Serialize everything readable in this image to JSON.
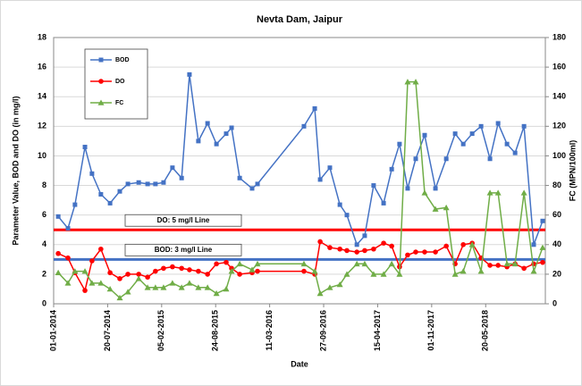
{
  "chart_data": {
    "type": "line",
    "title": "Nevta Dam, Jaipur",
    "xlabel": "Date",
    "ylabel": "Parameter Value, BOD and DO (in mg/l)",
    "y2label": "FC (MPN/100ml)",
    "x": [
      "2014-01-18",
      "2014-02-23",
      "2014-03-21",
      "2014-04-27",
      "2014-05-23",
      "2014-06-25",
      "2014-07-29",
      "2014-09-03",
      "2014-10-03",
      "2014-11-12",
      "2014-12-15",
      "2015-01-13",
      "2015-02-12",
      "2015-03-17",
      "2015-04-20",
      "2015-05-19",
      "2015-06-21",
      "2015-07-25",
      "2015-08-27",
      "2015-10-02",
      "2015-10-22",
      "2015-11-21",
      "2016-01-06",
      "2016-01-26",
      "2016-07-16",
      "2016-08-25",
      "2016-09-14",
      "2016-10-20",
      "2016-11-26",
      "2016-12-22",
      "2017-01-28",
      "2017-02-26",
      "2017-03-31",
      "2017-05-07",
      "2017-06-06",
      "2017-07-05",
      "2017-08-04",
      "2017-09-03",
      "2017-10-06",
      "2017-11-15",
      "2017-12-25",
      "2018-01-27",
      "2018-02-26",
      "2018-03-31",
      "2018-05-03",
      "2018-06-05",
      "2018-07-05",
      "2018-08-07",
      "2018-09-06",
      "2018-10-09",
      "2018-11-14",
      "2018-12-17"
    ],
    "series": [
      {
        "name": "BOD",
        "color": "#4472c4",
        "marker": "square",
        "values": [
          5.9,
          5.1,
          6.7,
          10.6,
          8.8,
          7.4,
          6.8,
          7.6,
          8.1,
          8.2,
          8.1,
          8.1,
          8.2,
          9.2,
          8.5,
          15.5,
          11.0,
          12.2,
          10.8,
          11.5,
          11.9,
          8.5,
          7.8,
          8.1,
          12.0,
          13.2,
          8.4,
          9.2,
          6.7,
          6.0,
          4.0,
          4.6,
          8.0,
          6.8,
          9.1,
          10.8,
          7.8,
          9.8,
          11.4,
          7.8,
          9.8,
          11.5,
          10.8,
          11.5,
          12.0,
          9.8,
          12.2,
          10.8,
          10.2,
          12.0,
          4.0,
          5.6
        ]
      },
      {
        "name": "DO",
        "color": "#ff0000",
        "marker": "circle",
        "values": [
          3.4,
          3.1,
          2.1,
          0.9,
          2.9,
          3.7,
          2.1,
          1.7,
          2.0,
          2.0,
          1.8,
          2.2,
          2.4,
          2.5,
          2.4,
          2.3,
          2.2,
          2.0,
          2.7,
          2.8,
          2.4,
          2.0,
          2.1,
          2.2,
          2.2,
          2.0,
          4.2,
          3.8,
          3.7,
          3.6,
          3.5,
          3.6,
          3.7,
          4.1,
          3.9,
          2.5,
          3.3,
          3.5,
          3.5,
          3.5,
          3.9,
          2.7,
          4.0,
          4.1,
          3.1,
          2.6,
          2.6,
          2.5,
          2.7,
          2.4,
          2.7,
          2.8
        ]
      },
      {
        "name": "FC",
        "color": "#70ad47",
        "marker": "triangle",
        "axis": "y2",
        "values": [
          21,
          14,
          22,
          22,
          14,
          14,
          10,
          4,
          8,
          17,
          11,
          11,
          11,
          14,
          11,
          14,
          11,
          11,
          7,
          10,
          22,
          27,
          23,
          27,
          27,
          22,
          7,
          11,
          13,
          20,
          27,
          27,
          20,
          20,
          27,
          20,
          150,
          150,
          75,
          64,
          65,
          20,
          22,
          40,
          22,
          75,
          75,
          27,
          27,
          75,
          22,
          38
        ]
      }
    ],
    "reference_lines": [
      {
        "value": 5,
        "label": "DO: 5 mg/l Line",
        "color": "#ff0000"
      },
      {
        "value": 3,
        "label": "BOD: 3 mg/l Line",
        "color": "#4472c4"
      }
    ],
    "xlim": [
      "2014-01-01",
      "2018-12-27"
    ],
    "xticks": [
      {
        "value": "2014-01-01",
        "label": "01-01-2014"
      },
      {
        "value": "2014-07-20",
        "label": "20-07-2014"
      },
      {
        "value": "2015-02-05",
        "label": "05-02-2015"
      },
      {
        "value": "2015-08-24",
        "label": "24-08-2015"
      },
      {
        "value": "2016-03-11",
        "label": "11-03-2016"
      },
      {
        "value": "2016-09-27",
        "label": "27-09-2016"
      },
      {
        "value": "2017-04-15",
        "label": "15-04-2017"
      },
      {
        "value": "2017-11-01",
        "label": "01-11-2017"
      },
      {
        "value": "2018-05-20",
        "label": "20-05-2018"
      }
    ],
    "ylim": [
      0,
      18
    ],
    "yticks": [
      0,
      2,
      4,
      6,
      8,
      10,
      12,
      14,
      16,
      18
    ],
    "y2lim": [
      0,
      180
    ],
    "y2ticks": [
      0,
      20,
      40,
      60,
      80,
      100,
      120,
      140,
      160,
      180
    ],
    "grid": true,
    "legend": "upper left"
  }
}
